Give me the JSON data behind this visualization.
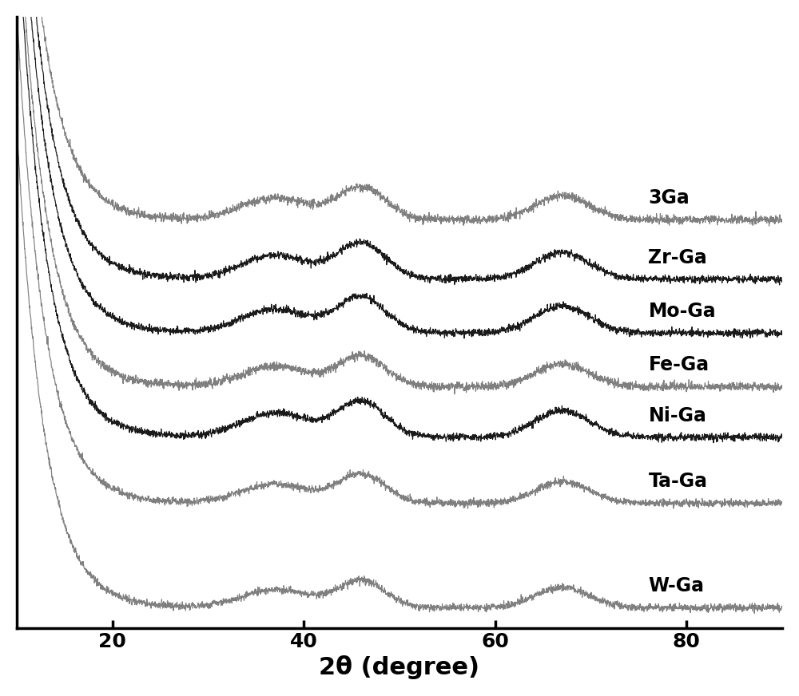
{
  "labels": [
    "3Ga",
    "Zr-Ga",
    "Mo-Ga",
    "Fe-Ga",
    "Ni-Ga",
    "Ta-Ga",
    "W-Ga"
  ],
  "colors": [
    "#7f7f7f",
    "#1a1a1a",
    "#1a1a1a",
    "#7f7f7f",
    "#1a1a1a",
    "#7f7f7f",
    "#7f7f7f"
  ],
  "xlabel": "2θ (degree)",
  "xlim": [
    10,
    90
  ],
  "xticks": [
    20,
    40,
    60,
    80
  ],
  "offsets": [
    1.3,
    1.1,
    0.92,
    0.74,
    0.57,
    0.35,
    0.0
  ],
  "background_color": "#ffffff",
  "label_fontsize": 17,
  "xlabel_fontsize": 22,
  "tick_fontsize": 18
}
